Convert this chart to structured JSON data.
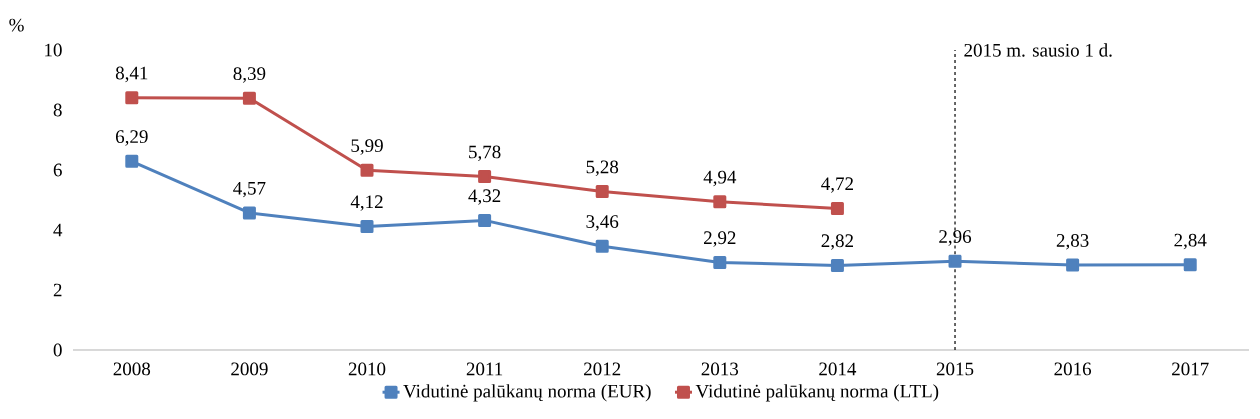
{
  "chart_data": {
    "type": "line",
    "ylabel": "%",
    "categories": [
      "2008",
      "2009",
      "2010",
      "2011",
      "2012",
      "2013",
      "2014",
      "2015",
      "2016",
      "2017"
    ],
    "series": [
      {
        "name": "Vidutinė palūkanų norma (EUR)",
        "color": "#4f81bd",
        "values": [
          6.29,
          4.57,
          4.12,
          4.32,
          3.46,
          2.92,
          2.82,
          2.96,
          2.83,
          2.84
        ],
        "value_labels": [
          "6,29",
          "4,57",
          "4,12",
          "4,32",
          "3,46",
          "2,92",
          "2,82",
          "2,96",
          "2,83",
          "2,84"
        ]
      },
      {
        "name": "Vidutinė palūkanų norma (LTL)",
        "color": "#c0504d",
        "values": [
          8.41,
          8.39,
          5.99,
          5.78,
          5.28,
          4.94,
          4.72,
          null,
          null,
          null
        ],
        "value_labels": [
          "8,41",
          "8,39",
          "5,99",
          "5,78",
          "5,28",
          "4,94",
          "4,72",
          null,
          null,
          null
        ]
      }
    ],
    "ylim": [
      0,
      10
    ],
    "yticks": [
      0,
      2,
      4,
      6,
      8,
      10
    ],
    "ref_lines": [
      {
        "axis": "x",
        "value": "2015",
        "label": "2015 m. sausio 1 d.",
        "color": "#000000",
        "line_style": "dashed"
      }
    ],
    "legend": "bottom",
    "marker": "square",
    "line_style": "solid",
    "grid": false
  }
}
